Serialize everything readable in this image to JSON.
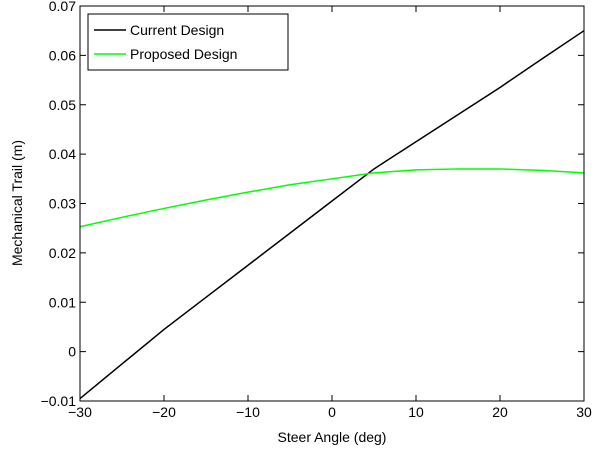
{
  "chart_data": {
    "type": "line",
    "x_label": "Steer Angle (deg)",
    "y_label": "Mechanical Trail (m)",
    "x": [
      -30,
      -25,
      -20,
      -15,
      -10,
      -5,
      0,
      5,
      10,
      15,
      20,
      25,
      30
    ],
    "series": [
      {
        "name": "Current Design",
        "color": "#000000",
        "values": [
          -0.0095,
          -0.0025,
          0.0045,
          0.011,
          0.0175,
          0.024,
          0.0305,
          0.037,
          0.0425,
          0.048,
          0.0535,
          0.0593,
          0.065
        ]
      },
      {
        "name": "Proposed Design",
        "color": "#00ff00",
        "values": [
          0.0253,
          0.0272,
          0.029,
          0.0307,
          0.0323,
          0.0338,
          0.035,
          0.0362,
          0.0368,
          0.037,
          0.037,
          0.0367,
          0.0362
        ]
      }
    ],
    "xlim": [
      -30,
      30
    ],
    "ylim": [
      -0.01,
      0.07
    ],
    "xticks": [
      {
        "value": -30,
        "label": "−30"
      },
      {
        "value": -20,
        "label": "−20"
      },
      {
        "value": -10,
        "label": "−10"
      },
      0,
      10,
      20,
      30
    ],
    "yticks": [
      {
        "value": -0.01,
        "label": "−0.01"
      },
      0,
      0.01,
      0.02,
      0.03,
      0.04,
      0.05,
      0.06,
      0.07
    ],
    "legend": "northwest",
    "grid": false
  }
}
